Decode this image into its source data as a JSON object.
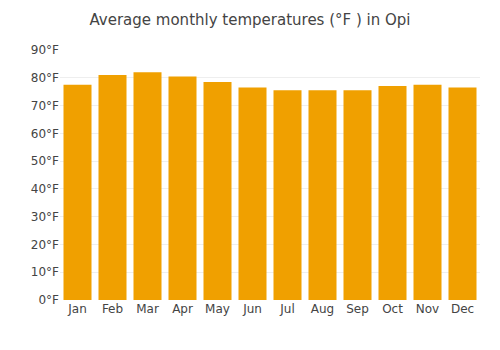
{
  "chart_data": {
    "type": "bar",
    "title": "Average monthly temperatures (°F ) in Opi",
    "categories": [
      "Jan",
      "Feb",
      "Mar",
      "Apr",
      "May",
      "Jun",
      "Jul",
      "Aug",
      "Sep",
      "Oct",
      "Nov",
      "Dec"
    ],
    "values": [
      77.5,
      81.0,
      82.0,
      80.5,
      78.5,
      76.5,
      75.5,
      75.5,
      75.5,
      77.0,
      77.5,
      76.5
    ],
    "color": "#F0A000",
    "ylim": [
      0,
      90
    ],
    "yticks": [
      {
        "value": 0,
        "label": "0°F"
      },
      {
        "value": 10,
        "label": "10°F"
      },
      {
        "value": 20,
        "label": "20°F"
      },
      {
        "value": 30,
        "label": "30°F"
      },
      {
        "value": 40,
        "label": "40°F"
      },
      {
        "value": 50,
        "label": "50°F"
      },
      {
        "value": 60,
        "label": "60°F"
      },
      {
        "value": 70,
        "label": "70°F"
      },
      {
        "value": 80,
        "label": "80°F"
      },
      {
        "value": 90,
        "label": "90°F"
      }
    ],
    "grid": true
  }
}
